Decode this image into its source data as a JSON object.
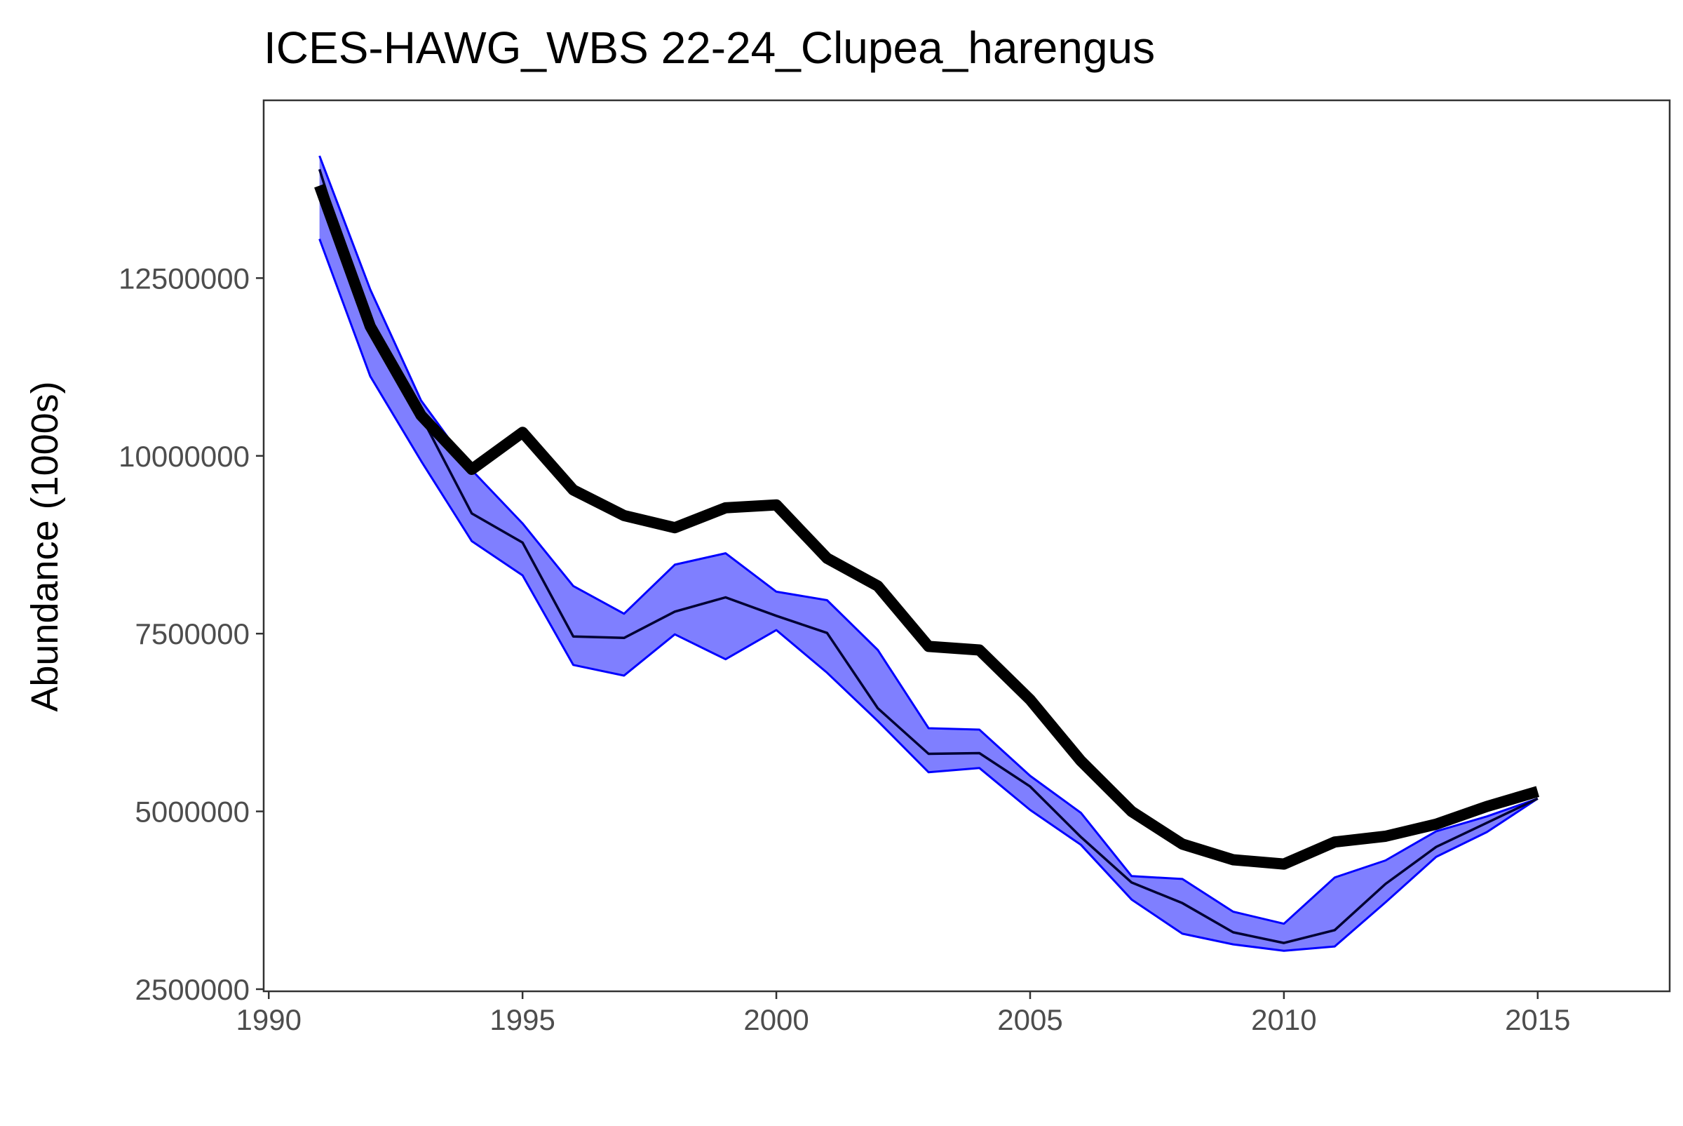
{
  "chart_data": {
    "type": "line",
    "title": "ICES-HAWG_WBS 22-24_Clupea_harengus",
    "xlabel": "",
    "ylabel": "Abundance (1000s)",
    "xlim": [
      1989.9,
      2017.6
    ],
    "ylim": [
      2470000,
      15000000
    ],
    "x_ticks": [
      1990,
      1995,
      2000,
      2005,
      2010,
      2015
    ],
    "x_tick_labels": [
      "1990",
      "1995",
      "2000",
      "2005",
      "2010",
      "2015"
    ],
    "y_ticks": [
      2500000,
      5000000,
      7500000,
      10000000,
      12500000
    ],
    "y_tick_labels": [
      "2500000",
      "5000000",
      "7500000",
      "10000000",
      "12500000"
    ],
    "grid": false,
    "legend": "none",
    "x": [
      1991,
      1992,
      1993,
      1994,
      1995,
      1996,
      1997,
      1998,
      1999,
      2000,
      2001,
      2002,
      2003,
      2004,
      2005,
      2006,
      2007,
      2008,
      2009,
      2010,
      2011,
      2012,
      2013,
      2014,
      2015
    ],
    "series": [
      {
        "role": "band-upper",
        "color": "#0000ff",
        "fill": "#7f7fff",
        "values": [
          14220000,
          12340000,
          10780000,
          9800000,
          9050000,
          8170000,
          7780000,
          8470000,
          8630000,
          8090000,
          7970000,
          7270000,
          6170000,
          6150000,
          5500000,
          4980000,
          4090000,
          4050000,
          3590000,
          3420000,
          4070000,
          4310000,
          4720000,
          4930000,
          5180000
        ]
      },
      {
        "role": "band-lower",
        "color": "#0000ff",
        "values": [
          13050000,
          11120000,
          9930000,
          8800000,
          8320000,
          7060000,
          6910000,
          7490000,
          7140000,
          7550000,
          6950000,
          6270000,
          5550000,
          5610000,
          5020000,
          4530000,
          3760000,
          3280000,
          3130000,
          3040000,
          3100000,
          3720000,
          4360000,
          4710000,
          5180000
        ]
      },
      {
        "role": "median",
        "color": "#000033",
        "values": [
          14030000,
          11760000,
          10560000,
          9190000,
          8780000,
          7460000,
          7440000,
          7810000,
          8010000,
          7750000,
          7510000,
          6450000,
          5810000,
          5820000,
          5350000,
          4640000,
          4000000,
          3710000,
          3300000,
          3150000,
          3330000,
          3980000,
          4500000,
          4840000,
          5180000
        ]
      },
      {
        "role": "assessment",
        "color": "#000000",
        "values": [
          13800000,
          11820000,
          10570000,
          9810000,
          10330000,
          9520000,
          9160000,
          8990000,
          9270000,
          9310000,
          8560000,
          8170000,
          7320000,
          7270000,
          6570000,
          5710000,
          5000000,
          4540000,
          4320000,
          4260000,
          4570000,
          4650000,
          4820000,
          5070000,
          5280000
        ]
      }
    ]
  }
}
